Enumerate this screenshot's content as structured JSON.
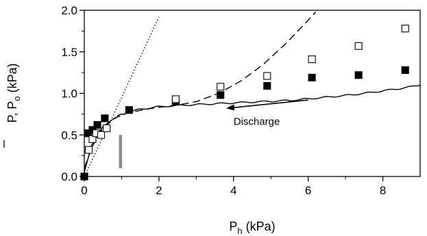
{
  "chart_data": {
    "type": "scatter",
    "xlabel_main": "P",
    "xlabel_sub": "h",
    "xlabel_unit": " (kPa)",
    "ylabel_main": "P",
    "ylabel_mid": ", P",
    "ylabel_sub": "o",
    "ylabel_unit": " (kPa)",
    "xlim": [
      0,
      9
    ],
    "ylim": [
      0,
      2
    ],
    "xticks": [
      0,
      2,
      4,
      6,
      8
    ],
    "xtick_labels": [
      "0",
      "2",
      "4",
      "6",
      "8"
    ],
    "yticks": [
      0,
      0.5,
      1.0,
      1.5,
      2.0
    ],
    "ytick_labels": [
      "0.0",
      "0.5",
      "1.0",
      "1.5",
      "2.0"
    ],
    "annotation": {
      "text": "Discharge",
      "arrow_from": [
        6.0,
        0.92
      ],
      "arrow_to": [
        3.8,
        0.82
      ],
      "text_at": [
        4.0,
        0.62
      ]
    },
    "scale_bar": {
      "x": 0.97,
      "y0": 0.1,
      "y1": 0.5
    },
    "series": [
      {
        "marker": "filled-square",
        "x": [
          0.0,
          0.1,
          0.22,
          0.35,
          0.55,
          1.2,
          2.45,
          3.65,
          4.9,
          6.1,
          7.35,
          8.6
        ],
        "y": [
          0.0,
          0.52,
          0.56,
          0.62,
          0.7,
          0.8,
          0.9,
          0.98,
          1.09,
          1.19,
          1.22,
          1.28
        ]
      },
      {
        "marker": "open-square",
        "x": [
          0.12,
          0.22,
          0.32,
          0.45,
          0.6,
          2.45,
          3.65,
          4.9,
          6.1,
          7.35,
          8.6
        ],
        "y": [
          0.32,
          0.45,
          0.52,
          0.5,
          0.58,
          0.93,
          1.08,
          1.21,
          1.41,
          1.57,
          1.78
        ]
      },
      {
        "style": "dotted-line",
        "x": [
          0.0,
          1.0,
          2.0
        ],
        "y": [
          0.0,
          0.95,
          1.92
        ]
      },
      {
        "style": "dashed-line",
        "x": [
          0.0,
          0.2,
          0.5,
          0.8,
          1.2,
          1.8,
          2.5,
          3.0,
          3.6,
          4.2,
          4.8,
          5.4,
          6.0,
          6.2
        ],
        "y": [
          0.1,
          0.35,
          0.58,
          0.7,
          0.77,
          0.82,
          0.86,
          0.9,
          1.0,
          1.15,
          1.35,
          1.6,
          1.88,
          1.98
        ]
      },
      {
        "style": "solid-line",
        "x": [
          0.0,
          0.2,
          0.5,
          0.8,
          1.0,
          1.5,
          2.0,
          2.5,
          3.0,
          3.5,
          4.0,
          4.5,
          5.0,
          5.5,
          6.0,
          6.5,
          7.0,
          7.5,
          8.0,
          8.5,
          9.0
        ],
        "y": [
          0.05,
          0.38,
          0.6,
          0.7,
          0.75,
          0.81,
          0.84,
          0.855,
          0.865,
          0.875,
          0.885,
          0.895,
          0.905,
          0.915,
          0.935,
          0.955,
          0.975,
          1.0,
          1.03,
          1.06,
          1.1
        ]
      }
    ]
  }
}
